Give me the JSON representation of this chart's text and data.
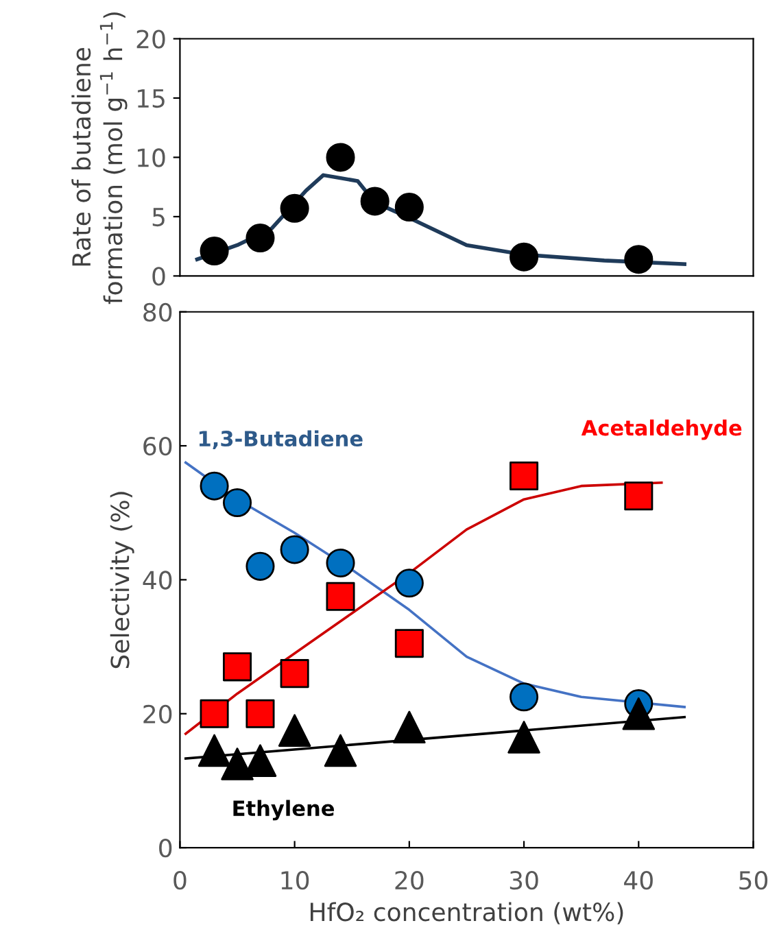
{
  "chart_data": [
    {
      "type": "scatter",
      "ylabel": "Rate of butadiene\nformation (mol g$^{−1}$ h$^{−1}$)",
      "xlim": [
        0,
        50
      ],
      "ylim": [
        0,
        20
      ],
      "yticks": [
        0,
        5,
        10,
        15,
        20
      ],
      "tick_labels": "y",
      "grid": false,
      "legend": false,
      "series": [
        {
          "type": "scatter",
          "marker": "circle",
          "color": "#000000",
          "x": [
            3,
            7,
            10,
            14,
            17,
            20,
            30,
            40
          ],
          "values": [
            2.1,
            3.2,
            5.7,
            10.0,
            6.3,
            5.8,
            1.6,
            1.4
          ]
        },
        {
          "type": "line",
          "marker": "none",
          "color": "#1f3b5a",
          "x": [
            1.5,
            5,
            8,
            11,
            12.5,
            15.5,
            17,
            20,
            25,
            30,
            37,
            44
          ],
          "values": [
            1.4,
            2.6,
            4.0,
            7.2,
            8.5,
            8.0,
            6.2,
            4.9,
            2.6,
            1.8,
            1.3,
            1.0
          ]
        }
      ]
    },
    {
      "type": "scatter",
      "xlabel": "HfO₂ concentration (wt%)",
      "ylabel": "Selectivity (%)",
      "xlim": [
        0,
        50
      ],
      "xticks": [
        0,
        10,
        20,
        30,
        40,
        50
      ],
      "ylim": [
        0,
        80
      ],
      "yticks": [
        0,
        20,
        40,
        60,
        80
      ],
      "grid": false,
      "legend": false,
      "series": [
        {
          "type": "scatter",
          "name": "1,3-Butadiene",
          "marker": "circle",
          "color": "#0070c0",
          "x": [
            3,
            5,
            7,
            10,
            14,
            20,
            30,
            40
          ],
          "values": [
            54,
            51.5,
            42,
            44.5,
            42.5,
            39.5,
            22.5,
            21.5
          ]
        },
        {
          "type": "scatter",
          "name": "Acetaldehyde",
          "marker": "square",
          "color": "#ff0000",
          "x": [
            3,
            5,
            7,
            10,
            14,
            20,
            30,
            40
          ],
          "values": [
            20,
            27,
            20,
            26,
            37.5,
            30.5,
            55.5,
            52.5
          ]
        },
        {
          "type": "scatter",
          "name": "Ethylene",
          "marker": "triangle",
          "color": "#000000",
          "x": [
            3,
            5,
            7,
            10,
            14,
            20,
            30,
            40
          ],
          "values": [
            14.5,
            12.5,
            13,
            17.5,
            14.5,
            18,
            16.5,
            20
          ]
        },
        {
          "type": "line",
          "marker": "none",
          "color": "#4472c4",
          "x": [
            0.5,
            5,
            10,
            15,
            20,
            25,
            30,
            35,
            44
          ],
          "values": [
            57.5,
            52,
            47,
            41.5,
            35.5,
            28.5,
            24.5,
            22.5,
            21
          ]
        },
        {
          "type": "line",
          "marker": "none",
          "color": "#cc0000",
          "x": [
            0.5,
            5,
            10,
            15,
            20,
            25,
            30,
            35,
            42
          ],
          "values": [
            17,
            23,
            29,
            35,
            41,
            47.5,
            52,
            54,
            54.5
          ]
        },
        {
          "type": "line",
          "marker": "none",
          "color": "#000000",
          "x": [
            0.5,
            44
          ],
          "values": [
            13.3,
            19.5
          ]
        }
      ]
    }
  ]
}
